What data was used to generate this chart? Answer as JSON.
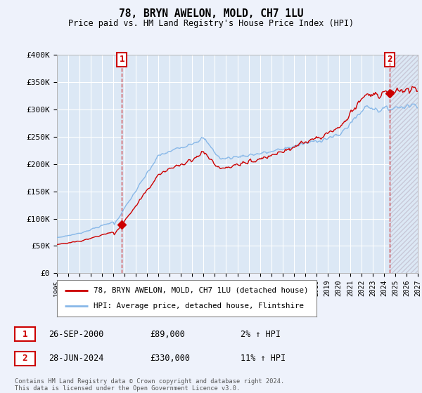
{
  "title": "78, BRYN AWELON, MOLD, CH7 1LU",
  "subtitle": "Price paid vs. HM Land Registry's House Price Index (HPI)",
  "legend_line1": "78, BRYN AWELON, MOLD, CH7 1LU (detached house)",
  "legend_line2": "HPI: Average price, detached house, Flintshire",
  "transaction1_label": "1",
  "transaction1_date": "26-SEP-2000",
  "transaction1_price": "£89,000",
  "transaction1_hpi": "2% ↑ HPI",
  "transaction2_label": "2",
  "transaction2_date": "28-JUN-2024",
  "transaction2_price": "£330,000",
  "transaction2_hpi": "11% ↑ HPI",
  "footer": "Contains HM Land Registry data © Crown copyright and database right 2024.\nThis data is licensed under the Open Government Licence v3.0.",
  "xmin": 1995.0,
  "xmax": 2027.0,
  "ymin": 0,
  "ymax": 400000,
  "yticks": [
    0,
    50000,
    100000,
    150000,
    200000,
    250000,
    300000,
    350000,
    400000
  ],
  "ytick_labels": [
    "£0",
    "£50K",
    "£100K",
    "£150K",
    "£200K",
    "£250K",
    "£300K",
    "£350K",
    "£400K"
  ],
  "background_color": "#eef2fb",
  "plot_bg_color": "#dce8f5",
  "grid_color": "#ffffff",
  "hpi_line_color": "#88b8e8",
  "price_line_color": "#cc0000",
  "transaction1_x": 2000.75,
  "transaction1_y": 89000,
  "transaction2_x": 2024.5,
  "transaction2_y": 330000,
  "marker_color": "#cc0000",
  "hatch_color": "#c8c8d8"
}
